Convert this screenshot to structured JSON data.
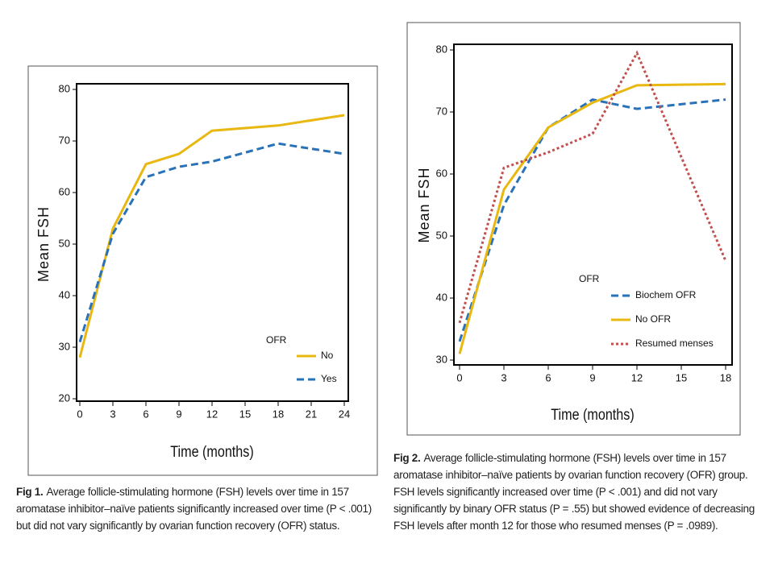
{
  "chart_data": [
    {
      "type": "line",
      "x_label": "Time (months)",
      "y_label": "Mean FSH",
      "x": [
        0,
        3,
        6,
        9,
        12,
        18,
        24
      ],
      "xlim": [
        0,
        24
      ],
      "xticks": [
        0,
        3,
        6,
        9,
        12,
        15,
        18,
        21,
        24
      ],
      "ylim": [
        20,
        80
      ],
      "yticks": [
        20,
        30,
        40,
        50,
        60,
        70,
        80
      ],
      "legend_title": "OFR",
      "legend": "lower right",
      "series": [
        {
          "name": "No",
          "color": "#e8b810",
          "style": "solid",
          "values": [
            28,
            53,
            65.5,
            67.5,
            72,
            73,
            75
          ]
        },
        {
          "name": "Yes",
          "color": "#2a72b8",
          "style": "dashed",
          "values": [
            31,
            52,
            63,
            65,
            66,
            69.5,
            67.5
          ]
        }
      ]
    },
    {
      "type": "line",
      "x_label": "Time (months)",
      "y_label": "Mean FSH",
      "x": [
        0,
        3,
        6,
        9,
        12,
        18
      ],
      "xlim": [
        0,
        18
      ],
      "xticks": [
        0,
        3,
        6,
        9,
        12,
        15,
        18
      ],
      "ylim": [
        30,
        80
      ],
      "yticks": [
        30,
        40,
        50,
        60,
        70,
        80
      ],
      "legend_title": "OFR",
      "legend": "lower right",
      "series": [
        {
          "name": "Biochem OFR",
          "color": "#2a72b8",
          "style": "dashed",
          "values": [
            33,
            55,
            67.5,
            72,
            70.5,
            72
          ]
        },
        {
          "name": "No OFR",
          "color": "#e8b810",
          "style": "solid",
          "values": [
            31,
            57.5,
            67.5,
            71.5,
            74.3,
            74.5
          ]
        },
        {
          "name": "Resumed menses",
          "color": "#c0504d",
          "style": "dotted",
          "values": [
            36,
            61,
            63.5,
            66.5,
            79.5,
            46
          ]
        }
      ]
    }
  ],
  "captions": [
    {
      "label": "Fig 1.",
      "text": "Average follicle-stimulating hormone (FSH) levels over time in 157 aromatase inhibitor–naïve patients significantly increased over time (P < .001) but did not vary significantly by ovarian function recovery (OFR) status."
    },
    {
      "label": "Fig 2.",
      "text": "Average follicle-stimulating hormone (FSH) levels over time in 157 aromatase inhibitor–naïve patients by ovarian function recovery (OFR) group. FSH levels significantly increased over time (P < .001) and did not vary significantly by binary OFR status (P = .55) but showed evidence of decreasing FSH levels after month 12 for those who resumed menses (P = .0989)."
    }
  ]
}
